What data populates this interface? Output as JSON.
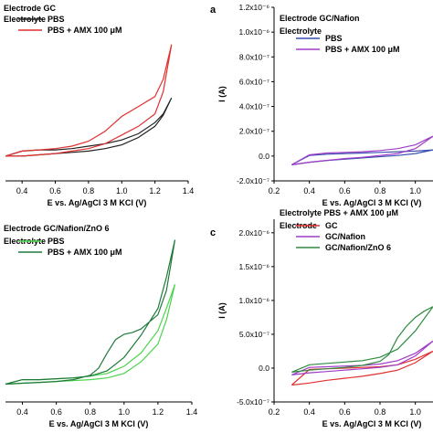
{
  "chart_data": [
    {
      "panel": "top-left",
      "type": "line",
      "panel_letter": "",
      "annotations": [
        "Electrode GC",
        "Electrolyte"
      ],
      "xlabel": "E vs. Ag/AgCl 3 M KCl (V)",
      "ylabel": "",
      "xlim": [
        0.3,
        1.4
      ],
      "ylim": [
        -0.2,
        1.2
      ],
      "x_ticks": [
        "0.4",
        "0.6",
        "0.8",
        "1.0",
        "1.2",
        "1.4"
      ],
      "y_ticks": [],
      "legend_position": "top-left",
      "series": [
        {
          "name": "PBS",
          "color": "#222222",
          "x": [
            0.3,
            0.4,
            0.5,
            0.6,
            0.7,
            0.8,
            0.9,
            1.0,
            1.1,
            1.2,
            1.25,
            1.3,
            1.3,
            1.25,
            1.2,
            1.1,
            1.0,
            0.9,
            0.8,
            0.7,
            0.6,
            0.5,
            0.4,
            0.3
          ],
          "y": [
            0.0,
            0.0,
            0.01,
            0.02,
            0.03,
            0.04,
            0.06,
            0.09,
            0.15,
            0.24,
            0.33,
            0.47,
            0.47,
            0.34,
            0.27,
            0.18,
            0.13,
            0.1,
            0.08,
            0.06,
            0.05,
            0.05,
            0.04,
            0.0
          ]
        },
        {
          "name": "PBS + AMX 100 μM",
          "color": "#e03030",
          "x": [
            0.3,
            0.4,
            0.5,
            0.6,
            0.7,
            0.8,
            0.9,
            1.0,
            1.1,
            1.2,
            1.25,
            1.3,
            1.3,
            1.25,
            1.2,
            1.1,
            1.0,
            0.9,
            0.8,
            0.7,
            0.6,
            0.5,
            0.4,
            0.3
          ],
          "y": [
            0.0,
            0.0,
            0.01,
            0.02,
            0.04,
            0.06,
            0.1,
            0.17,
            0.24,
            0.34,
            0.52,
            0.9,
            0.9,
            0.62,
            0.48,
            0.4,
            0.32,
            0.2,
            0.12,
            0.08,
            0.06,
            0.05,
            0.04,
            0.0
          ]
        }
      ]
    },
    {
      "panel": "top-right",
      "type": "line",
      "panel_letter": "a",
      "annotations": [
        "Electrode GC/Nafion",
        "Electrolyte"
      ],
      "xlabel": "E vs. Ag/AgCl 3 M KCl (V)",
      "ylabel": "I (A)",
      "xlim": [
        0.2,
        1.1
      ],
      "ylim": [
        -2e-07,
        1.2e-06
      ],
      "x_ticks": [
        "0.2",
        "0.4",
        "0.6",
        "0.8",
        "1.0"
      ],
      "y_ticks": [
        "1.2x10⁻⁶",
        "1.0x10⁻⁶",
        "8.0x10⁻⁷",
        "6.0x10⁻⁷",
        "4.0x10⁻⁷",
        "2.0x10⁻⁷",
        "0.0",
        "-2.0x10⁻⁷"
      ],
      "legend_position": "top-left",
      "series": [
        {
          "name": "PBS",
          "color": "#3a4fb0",
          "x": [
            0.3,
            0.4,
            0.5,
            0.6,
            0.7,
            0.8,
            0.9,
            1.0,
            1.1,
            1.1,
            1.0,
            0.9,
            0.8,
            0.7,
            0.6,
            0.5,
            0.4,
            0.3
          ],
          "y": [
            -7e-08,
            -5e-08,
            -3.5e-08,
            -2.5e-08,
            -1.5e-08,
            -5e-09,
            5e-09,
            2e-08,
            5e-08,
            5e-08,
            4e-08,
            3.5e-08,
            3e-08,
            2.5e-08,
            2e-08,
            1.5e-08,
            5e-09,
            -7e-08
          ]
        },
        {
          "name": "PBS + AMX 100 μM",
          "color": "#a03cc8",
          "x": [
            0.3,
            0.4,
            0.5,
            0.6,
            0.7,
            0.8,
            0.9,
            1.0,
            1.1,
            1.1,
            1.0,
            0.9,
            0.8,
            0.7,
            0.6,
            0.5,
            0.4,
            0.3
          ],
          "y": [
            -7e-08,
            -5e-08,
            -3.5e-08,
            -2e-08,
            -1e-08,
            5e-09,
            2e-08,
            6e-08,
            1.6e-07,
            1.6e-07,
            9e-08,
            6e-08,
            4.5e-08,
            3.5e-08,
            3e-08,
            2.5e-08,
            1e-08,
            -7e-08
          ]
        }
      ]
    },
    {
      "panel": "bottom-left",
      "type": "line",
      "panel_letter": "",
      "annotations": [
        "Electrode GC/Nafion/ZnO 6",
        "Electrolyte"
      ],
      "xlabel": "E vs. Ag/AgCl 3 M KCl (V)",
      "ylabel": "",
      "xlim": [
        0.3,
        1.4
      ],
      "ylim": [
        -0.2,
        1.8
      ],
      "x_ticks": [
        "0.4",
        "0.6",
        "0.8",
        "1.0",
        "1.2",
        "1.4"
      ],
      "y_ticks": [],
      "legend_position": "top-left",
      "series": [
        {
          "name": "PBS",
          "color": "#4cd44c",
          "x": [
            0.3,
            0.4,
            0.5,
            0.6,
            0.7,
            0.8,
            0.9,
            1.0,
            1.1,
            1.2,
            1.25,
            1.3,
            1.3,
            1.25,
            1.2,
            1.1,
            1.0,
            0.9,
            0.8,
            0.7,
            0.6,
            0.5,
            0.4,
            0.3
          ],
          "y": [
            0.0,
            0.01,
            0.02,
            0.03,
            0.04,
            0.05,
            0.07,
            0.12,
            0.25,
            0.45,
            0.72,
            1.12,
            1.12,
            0.85,
            0.6,
            0.35,
            0.2,
            0.12,
            0.09,
            0.07,
            0.06,
            0.05,
            0.05,
            0.0
          ]
        },
        {
          "name": "PBS + AMX 100 μM",
          "color": "#1f7a3a",
          "x": [
            0.3,
            0.4,
            0.5,
            0.6,
            0.7,
            0.8,
            0.85,
            0.9,
            0.95,
            1.0,
            1.05,
            1.1,
            1.2,
            1.25,
            1.3,
            1.3,
            1.25,
            1.2,
            1.1,
            1.0,
            0.9,
            0.8,
            0.7,
            0.6,
            0.5,
            0.4,
            0.3
          ],
          "y": [
            0.0,
            0.01,
            0.02,
            0.03,
            0.05,
            0.1,
            0.18,
            0.35,
            0.5,
            0.56,
            0.58,
            0.62,
            0.78,
            1.05,
            1.62,
            1.62,
            1.2,
            0.85,
            0.55,
            0.3,
            0.15,
            0.09,
            0.07,
            0.06,
            0.05,
            0.05,
            0.0
          ]
        }
      ]
    },
    {
      "panel": "bottom-right",
      "type": "line",
      "panel_letter": "c",
      "annotations": [
        "Electrolyte PBS + AMX 100 μM",
        "Electrode"
      ],
      "xlabel": "E vs. Ag/AgCl 3 M KCl (V)",
      "ylabel": "I (A)",
      "xlim": [
        0.2,
        1.1
      ],
      "ylim": [
        -5e-07,
        2.2e-06
      ],
      "x_ticks": [
        "0.2",
        "0.4",
        "0.6",
        "0.8",
        "1.0"
      ],
      "y_ticks": [
        "2.0x10⁻⁶",
        "1.5x10⁻⁶",
        "1.0x10⁻⁶",
        "5.0x10⁻⁷",
        "0.0",
        "-5.0x10⁻⁷"
      ],
      "legend_position": "top-left",
      "series": [
        {
          "name": "GC",
          "color": "#e03030",
          "x": [
            0.3,
            0.4,
            0.5,
            0.6,
            0.7,
            0.8,
            0.9,
            1.0,
            1.1,
            1.1,
            1.0,
            0.9,
            0.8,
            0.7,
            0.6,
            0.5,
            0.4,
            0.3
          ],
          "y": [
            -2.5e-07,
            -2.2e-07,
            -1.8e-07,
            -1.5e-07,
            -1.2e-07,
            -8e-08,
            -3e-08,
            8e-08,
            2.5e-07,
            2.5e-07,
            1.3e-07,
            5e-08,
            2e-08,
            1e-08,
            0,
            -1e-08,
            -2e-08,
            -2.5e-07
          ]
        },
        {
          "name": "GC/Nafion",
          "color": "#a03cc8",
          "x": [
            0.3,
            0.4,
            0.5,
            0.6,
            0.7,
            0.8,
            0.9,
            1.0,
            1.1,
            1.1,
            1.0,
            0.9,
            0.8,
            0.7,
            0.6,
            0.5,
            0.4,
            0.3
          ],
          "y": [
            -1e-07,
            -7e-08,
            -5e-08,
            -3e-08,
            -1e-08,
            1e-08,
            5e-08,
            1.8e-07,
            4e-07,
            4e-07,
            2.2e-07,
            1.1e-07,
            6e-08,
            4e-08,
            3e-08,
            2e-08,
            1e-08,
            -1e-07
          ]
        },
        {
          "name": "GC/Nafion/ZnO 6",
          "color": "#2e8b40",
          "x": [
            0.3,
            0.4,
            0.5,
            0.6,
            0.7,
            0.8,
            0.85,
            0.9,
            0.95,
            1.0,
            1.05,
            1.1,
            1.1,
            1.0,
            0.9,
            0.8,
            0.7,
            0.6,
            0.5,
            0.4,
            0.3
          ],
          "y": [
            -6e-08,
            -3e-08,
            -1e-08,
            1e-08,
            4e-08,
            1e-07,
            2e-07,
            4.5e-07,
            6.2e-07,
            7.5e-07,
            8.4e-07,
            9.1e-07,
            9.1e-07,
            5.5e-07,
            2.8e-07,
            1.6e-07,
            1.1e-07,
            9e-08,
            7e-08,
            5e-08,
            -6e-08
          ]
        }
      ]
    }
  ]
}
